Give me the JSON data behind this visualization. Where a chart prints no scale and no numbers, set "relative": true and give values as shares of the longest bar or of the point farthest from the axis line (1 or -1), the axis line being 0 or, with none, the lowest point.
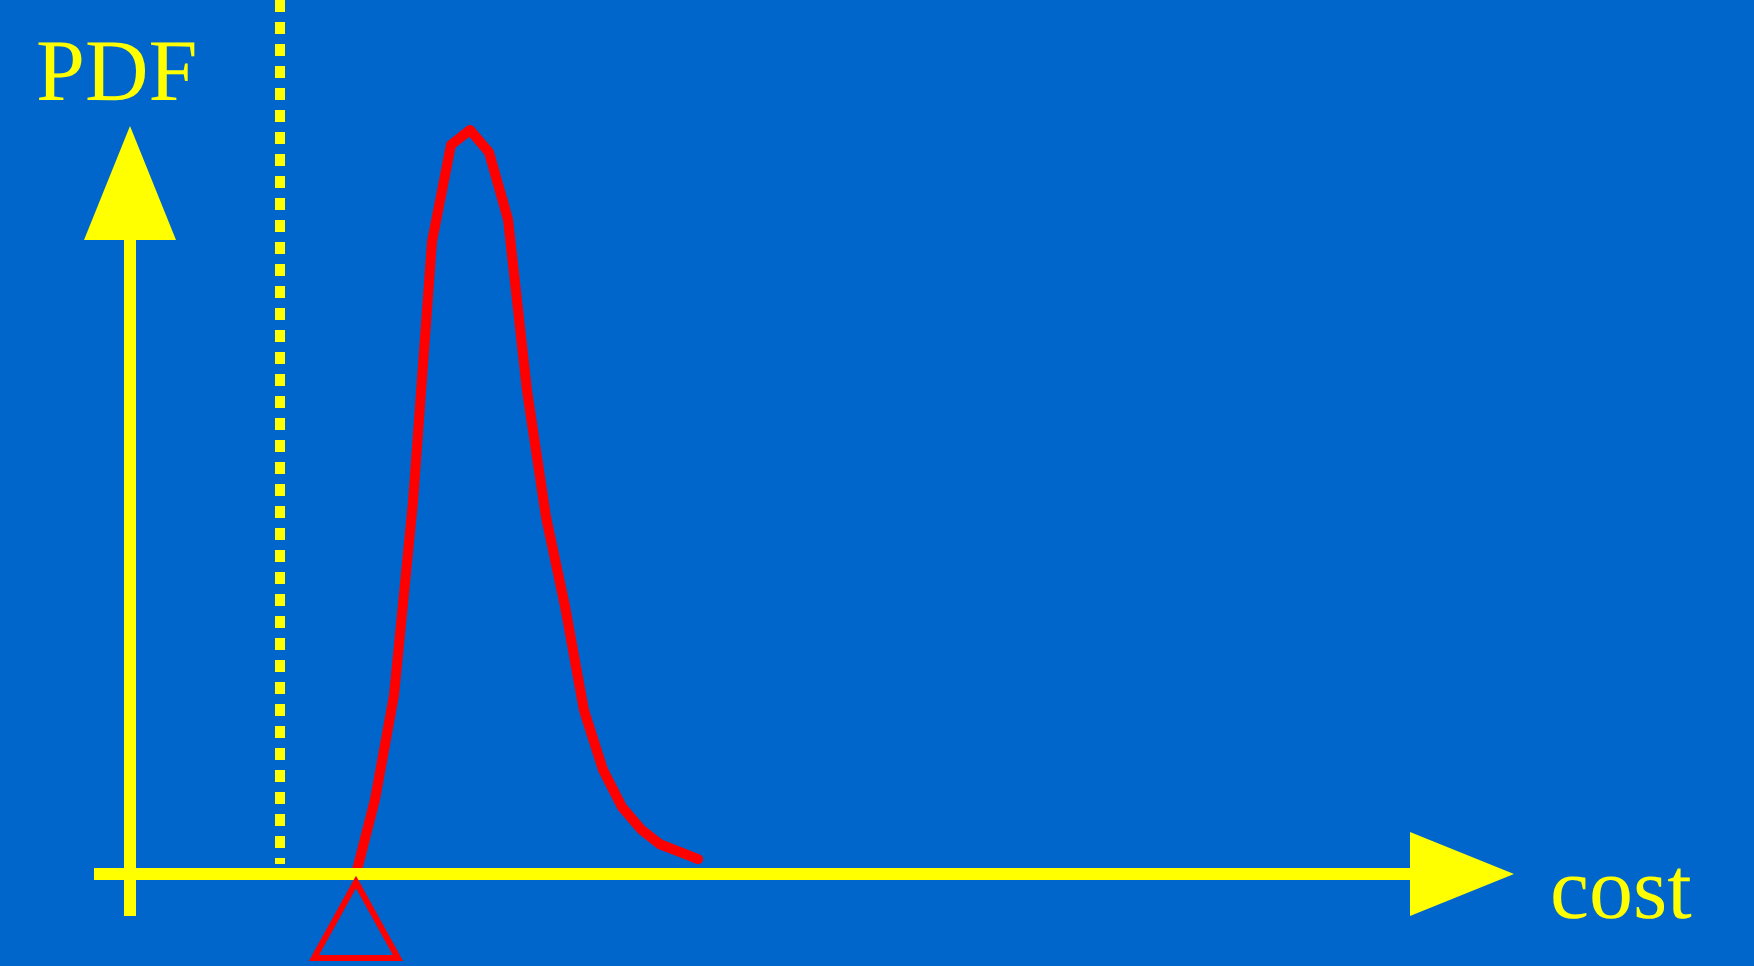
{
  "chart_data": {
    "type": "line",
    "relative": true,
    "annotations": [
      "cost"
    ],
    "ylabel": "PDF",
    "categories": [
      null,
      null,
      null,
      null,
      null,
      null,
      null,
      null,
      null,
      null,
      null,
      null,
      null,
      null,
      null,
      null,
      null,
      null,
      null,
      null,
      null,
      null,
      null
    ],
    "series": [
      {
        "color": "#ff0000",
        "values": [
          null,
          null,
          null,
          null,
          0,
          0.1,
          0.24,
          0.5,
          0.85,
          0.98,
          1,
          0.97,
          0.88,
          0.65,
          0.48,
          0.36,
          0.22,
          0.14,
          0.09,
          0.06,
          0.04,
          0.03,
          0.02
        ]
      }
    ],
    "ref_lines": [
      {
        "axis": "x",
        "color": "#ffff00",
        "line_style": "dotted"
      }
    ],
    "line_style": "solid"
  }
}
